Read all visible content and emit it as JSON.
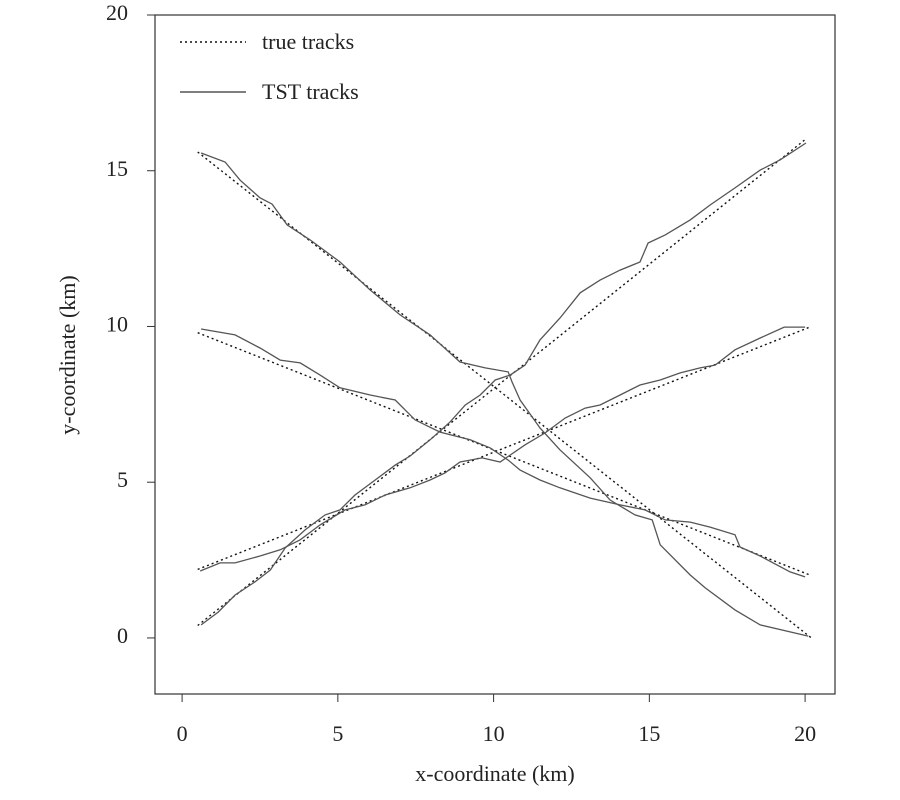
{
  "chart_data": {
    "type": "line",
    "xlabel": "x-coordinate (km)",
    "ylabel": "y-coordinate (km)",
    "xlim": [
      -0.87,
      20.96
    ],
    "ylim": [
      -1.8,
      20
    ],
    "xticks": [
      0,
      5,
      10,
      15,
      20
    ],
    "yticks": [
      0,
      5,
      10,
      15,
      20
    ],
    "legend": "upper left",
    "series": [
      {
        "name": "true tracks",
        "color": "#111111",
        "line_style": "dotted",
        "tracks": [
          {
            "x": [
              0.5,
              20.2
            ],
            "values": [
              15.6,
              0
            ]
          },
          {
            "x": [
              0.5,
              20.2
            ],
            "values": [
              9.8,
              2.0
            ]
          },
          {
            "x": [
              0.5,
              20.2
            ],
            "values": [
              2.2,
              10.0
            ]
          },
          {
            "x": [
              0.5,
              20.0
            ],
            "values": [
              0.4,
              16.0
            ]
          }
        ]
      },
      {
        "name": "TST tracks",
        "color": "#555555",
        "line_style": "solid",
        "tracks": [
          {
            "x": [
              0.61,
              1.38,
              1.86,
              2.5,
              2.89,
              3.37,
              4.11,
              5.07,
              6.04,
              7.0,
              7.96,
              8.92,
              9.73,
              10.47,
              10.59,
              10.85,
              11.49,
              12.13,
              13.1,
              13.74,
              14.54,
              15.09,
              15.35,
              16.31,
              16.79,
              17.75,
              18.56,
              20.1
            ],
            "values": [
              15.57,
              15.28,
              14.7,
              14.13,
              13.93,
              13.26,
              12.78,
              12.07,
              11.17,
              10.37,
              9.73,
              8.86,
              8.67,
              8.54,
              8.22,
              7.64,
              6.74,
              6.04,
              5.14,
              4.43,
              3.95,
              3.79,
              2.99,
              2.02,
              1.61,
              0.9,
              0.42,
              0.06
            ]
          },
          {
            "x": [
              0.61,
              1.7,
              2.5,
              3.15,
              3.79,
              4.43,
              5.07,
              6.04,
              6.84,
              7.48,
              8.28,
              9.25,
              9.89,
              10.47,
              10.85,
              11.49,
              12.13,
              13.1,
              14.06,
              14.86,
              15.51,
              16.31,
              16.95,
              17.75,
              17.91,
              18.56,
              19.52,
              20.0
            ],
            "values": [
              9.92,
              9.73,
              9.31,
              8.92,
              8.83,
              8.44,
              8.03,
              7.8,
              7.64,
              7.0,
              6.61,
              6.36,
              6.1,
              5.71,
              5.39,
              5.07,
              4.82,
              4.49,
              4.27,
              4.11,
              3.79,
              3.72,
              3.56,
              3.31,
              2.92,
              2.63,
              2.12,
              1.96
            ]
          },
          {
            "x": [
              0.58,
              1.22,
              1.7,
              2.5,
              3.15,
              3.79,
              4.43,
              5.23,
              5.87,
              6.52,
              7.32,
              7.96,
              8.44,
              8.92,
              9.63,
              10.21,
              10.53,
              11.01,
              11.65,
              12.3,
              12.94,
              13.42,
              14.06,
              14.7,
              15.35,
              15.99,
              16.63,
              17.11,
              17.75,
              18.56,
              19.33,
              20.0
            ],
            "values": [
              2.15,
              2.41,
              2.41,
              2.63,
              2.83,
              3.15,
              3.63,
              4.11,
              4.27,
              4.59,
              4.82,
              5.07,
              5.3,
              5.65,
              5.78,
              5.65,
              5.87,
              6.2,
              6.58,
              7.06,
              7.38,
              7.48,
              7.8,
              8.12,
              8.28,
              8.51,
              8.67,
              8.76,
              9.25,
              9.63,
              9.98,
              9.98
            ]
          },
          {
            "x": [
              0.61,
              1.16,
              1.7,
              2.34,
              2.83,
              3.31,
              3.95,
              4.59,
              5.07,
              5.55,
              6.2,
              6.84,
              7.32,
              7.96,
              8.6,
              9.09,
              9.57,
              10.05,
              10.53,
              11.01,
              11.49,
              12.13,
              12.78,
              13.42,
              14.06,
              14.7,
              14.96,
              15.51,
              16.31,
              16.95,
              17.75,
              18.56,
              19.2,
              20.03
            ],
            "values": [
              0.42,
              0.83,
              1.38,
              1.8,
              2.18,
              2.89,
              3.47,
              3.95,
              4.11,
              4.59,
              5.07,
              5.55,
              5.84,
              6.36,
              6.93,
              7.48,
              7.8,
              8.28,
              8.44,
              8.76,
              9.57,
              10.27,
              11.08,
              11.49,
              11.81,
              12.07,
              12.68,
              12.94,
              13.42,
              13.9,
              14.45,
              15.02,
              15.35,
              15.89
            ]
          }
        ]
      }
    ]
  }
}
